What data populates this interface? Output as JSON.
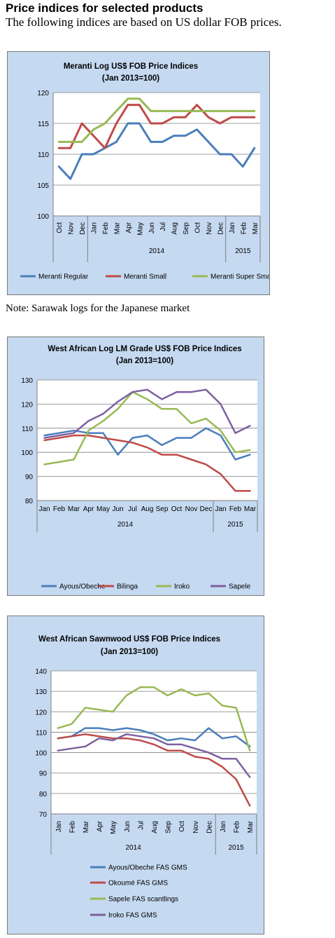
{
  "heading": {
    "title": "Price indices for selected products",
    "subtitle": "The following indices are based on US dollar FOB prices."
  },
  "note": "Note: Sarawak logs for the Japanese market",
  "chart_data": [
    {
      "type": "line",
      "title": "Meranti Log US$ FOB Price Indices",
      "subtitle": "(Jan 2013=100)",
      "categories": [
        "Oct",
        "Nov",
        "Dec",
        "Jan",
        "Feb",
        "Mar",
        "Apr",
        "May",
        "Jun",
        "Jul",
        "Aug",
        "Sep",
        "Oct",
        "Nov",
        "Dec",
        "Jan",
        "Feb",
        "Mar"
      ],
      "year_groups": [
        {
          "label": "2014",
          "start": 3,
          "end": 14
        },
        {
          "label": "2015",
          "start": 15,
          "end": 17
        }
      ],
      "ylim": [
        100,
        120
      ],
      "yticks": [
        100,
        105,
        110,
        115,
        120
      ],
      "grid": true,
      "legend_position": "bottom",
      "series": [
        {
          "name": "Meranti Regular",
          "color": "#4a7ebb",
          "values": [
            108,
            106,
            110,
            110,
            111,
            112,
            115,
            115,
            112,
            112,
            113,
            113,
            114,
            112,
            110,
            110,
            108,
            111
          ]
        },
        {
          "name": "Meranti Small",
          "color": "#be4b48",
          "values": [
            111,
            111,
            115,
            113,
            111,
            115,
            118,
            118,
            115,
            115,
            116,
            116,
            118,
            116,
            115,
            116,
            116,
            116
          ]
        },
        {
          "name": "Meranti Super Small",
          "color": "#98b954",
          "values": [
            112,
            112,
            112,
            114,
            115,
            117,
            119,
            119,
            117,
            117,
            117,
            117,
            117,
            117,
            117,
            117,
            117,
            117
          ]
        }
      ]
    },
    {
      "type": "line",
      "title": "West African Log LM Grade US$ FOB Price Indices",
      "subtitle": "(Jan 2013=100)",
      "categories": [
        "Jan",
        "Feb",
        "Mar",
        "Apr",
        "May",
        "Jun",
        "Jul",
        "Aug",
        "Sep",
        "Oct",
        "Nov",
        "Dec",
        "Jan",
        "Feb",
        "Mar"
      ],
      "year_groups": [
        {
          "label": "2014",
          "start": 0,
          "end": 11
        },
        {
          "label": "2015",
          "start": 12,
          "end": 14
        }
      ],
      "ylim": [
        80,
        130
      ],
      "yticks": [
        80,
        90,
        100,
        110,
        120,
        130
      ],
      "grid": true,
      "legend_position": "bottom",
      "series": [
        {
          "name": "Ayous/Obeche",
          "color": "#4a7ebb",
          "values": [
            107,
            108,
            109,
            108,
            108,
            99,
            106,
            107,
            103,
            106,
            106,
            110,
            107,
            97,
            99
          ]
        },
        {
          "name": "Bilinga",
          "color": "#be4b48",
          "values": [
            105,
            106,
            107,
            107,
            106,
            105,
            104,
            102,
            99,
            99,
            97,
            95,
            91,
            84,
            84
          ]
        },
        {
          "name": "Iroko",
          "color": "#98b954",
          "values": [
            95,
            96,
            97,
            109,
            113,
            118,
            125,
            122,
            118,
            118,
            112,
            114,
            109,
            100,
            101
          ]
        },
        {
          "name": "Sapele",
          "color": "#7d60a0",
          "values": [
            106,
            107,
            108,
            113,
            116,
            121,
            125,
            126,
            122,
            125,
            125,
            126,
            120,
            108,
            111
          ]
        }
      ]
    },
    {
      "type": "line",
      "title": "West African Sawnwood US$ FOB Price Indices",
      "subtitle": "(Jan 2013=100)",
      "categories": [
        "Jan",
        "Feb",
        "Mar",
        "Apr",
        "May",
        "Jun",
        "Jul",
        "Aug",
        "Sep",
        "Oct",
        "Nov",
        "Dec",
        "Jan",
        "Feb",
        "Mar"
      ],
      "year_groups": [
        {
          "label": "2014",
          "start": 0,
          "end": 11
        },
        {
          "label": "2015",
          "start": 12,
          "end": 14
        }
      ],
      "ylim": [
        70,
        140
      ],
      "yticks": [
        70,
        80,
        90,
        100,
        110,
        120,
        130,
        140
      ],
      "grid": true,
      "legend_position": "bottom",
      "series": [
        {
          "name": "Ayous/Obeche  FAS GMS",
          "color": "#4a7ebb",
          "values": [
            107,
            108,
            112,
            112,
            111,
            112,
            111,
            109,
            106,
            107,
            106,
            112,
            107,
            108,
            103
          ]
        },
        {
          "name": "Okoumé  FAS GMS",
          "color": "#be4b48",
          "values": [
            107,
            108,
            109,
            108,
            107,
            107,
            106,
            104,
            101,
            101,
            98,
            97,
            93,
            87,
            74
          ]
        },
        {
          "name": "Sapele FAS scantlings",
          "color": "#98b954",
          "values": [
            112,
            114,
            122,
            121,
            120,
            128,
            132,
            132,
            128,
            131,
            128,
            129,
            123,
            122,
            101
          ]
        },
        {
          "name": "Iroko FAS GMS",
          "color": "#7d60a0",
          "values": [
            101,
            102,
            103,
            107,
            106,
            109,
            108,
            107,
            104,
            104,
            102,
            100,
            97,
            97,
            88
          ]
        }
      ]
    }
  ]
}
